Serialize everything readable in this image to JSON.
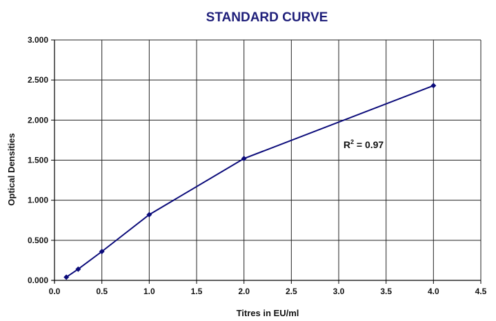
{
  "colors": {
    "title": "#1f1f7a",
    "series": "#0b0b7a",
    "grid": "#222222",
    "axis": "#000000"
  },
  "chart_data": {
    "type": "line",
    "title": "STANDARD CURVE",
    "xlabel": "Titres in EU/ml",
    "ylabel": "Optical Densities",
    "xlim": [
      0,
      4.5
    ],
    "ylim": [
      0,
      3.0
    ],
    "x_ticks": [
      "0.0",
      "0.5",
      "1.0",
      "1.5",
      "2.0",
      "2.5",
      "3.0",
      "3.5",
      "4.0",
      "4.5"
    ],
    "y_ticks": [
      "0.000",
      "0.500",
      "1.000",
      "1.500",
      "2.000",
      "2.500",
      "3.000"
    ],
    "grid": "vertical-and-horizontal",
    "series": [
      {
        "x": [
          0.125,
          0.25,
          0.5,
          1.0,
          2.0,
          4.0
        ],
        "y": [
          0.04,
          0.14,
          0.36,
          0.82,
          1.52,
          2.43
        ]
      }
    ],
    "annotation": {
      "main": "R",
      "superscript": "2",
      "rest": " = 0.97",
      "x": 3.05,
      "y": 1.65
    }
  }
}
